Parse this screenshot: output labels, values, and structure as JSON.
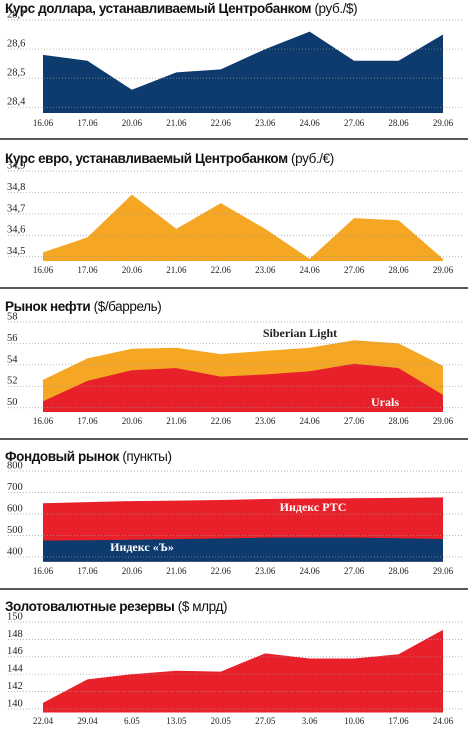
{
  "chart_data": [
    {
      "type": "area",
      "title": "Курс доллара, устанавливаемый Центробанком",
      "unit": "(руб./$)",
      "categories": [
        "16.06",
        "17.06",
        "20.06",
        "21.06",
        "22.06",
        "23.06",
        "24.06",
        "27.06",
        "28.06",
        "29.06"
      ],
      "values": [
        28.58,
        28.56,
        28.46,
        28.52,
        28.53,
        28.6,
        28.66,
        28.56,
        28.56,
        28.65
      ],
      "color": "#0d3b6e",
      "ylim": [
        28.38,
        28.7
      ],
      "yticks": [
        {
          "value": 28.4,
          "label": "28,4"
        },
        {
          "value": 28.5,
          "label": "28,5"
        },
        {
          "value": 28.6,
          "label": "28,6"
        },
        {
          "value": 28.7,
          "label": "28,7"
        }
      ],
      "grid": true
    },
    {
      "type": "area",
      "title": "Курс евро, устанавливаемый Центробанком",
      "unit": "(руб./€)",
      "categories": [
        "16.06",
        "17.06",
        "20.06",
        "21.06",
        "22.06",
        "23.06",
        "24.06",
        "27.06",
        "28.06",
        "29.06"
      ],
      "values": [
        34.52,
        34.59,
        34.79,
        34.63,
        34.75,
        34.63,
        34.49,
        34.68,
        34.67,
        34.49
      ],
      "color": "#f5a623",
      "ylim": [
        34.48,
        34.9
      ],
      "yticks": [
        {
          "value": 34.5,
          "label": "34,5"
        },
        {
          "value": 34.6,
          "label": "34,6"
        },
        {
          "value": 34.7,
          "label": "34,7"
        },
        {
          "value": 34.8,
          "label": "34,8"
        },
        {
          "value": 34.9,
          "label": "34,9"
        }
      ],
      "grid": true
    },
    {
      "type": "area",
      "title": "Рынок нефти",
      "unit": "($/баррель)",
      "categories": [
        "16.06",
        "17.06",
        "20.06",
        "21.06",
        "22.06",
        "23.06",
        "24.06",
        "27.06",
        "28.06",
        "29.06"
      ],
      "series": [
        {
          "name": "Siberian Light",
          "color": "#f5a623",
          "values": [
            52.6,
            54.6,
            55.5,
            55.6,
            55.0,
            55.3,
            55.6,
            56.3,
            56.0,
            53.9
          ]
        },
        {
          "name": "Urals",
          "color": "#e8202a",
          "values": [
            50.6,
            52.5,
            53.5,
            53.7,
            52.9,
            53.1,
            53.4,
            54.1,
            53.7,
            51.2
          ]
        }
      ],
      "ylim": [
        49.6,
        58
      ],
      "yticks": [
        50,
        52,
        54,
        56,
        58
      ],
      "grid": true
    },
    {
      "type": "area",
      "title": "Фондовый рынок",
      "unit": "(пункты)",
      "categories": [
        "16.06",
        "17.06",
        "20.06",
        "21.06",
        "22.06",
        "23.06",
        "24.06",
        "27.06",
        "28.06",
        "29.06"
      ],
      "series": [
        {
          "name": "Индекс РТС",
          "color": "#e8202a",
          "values": [
            650,
            655,
            660,
            662,
            665,
            670,
            672,
            673,
            675,
            677
          ]
        },
        {
          "name": "Индекс «Ъ»",
          "color": "#0d3b6e",
          "values": [
            476,
            478,
            480,
            483,
            486,
            490,
            490,
            490,
            487,
            483
          ]
        }
      ],
      "ylim": [
        378,
        800
      ],
      "yticks": [
        400,
        500,
        600,
        700,
        800
      ],
      "grid": true
    },
    {
      "type": "area",
      "title": "Золотовалютные резервы",
      "unit": "($ млрд)",
      "categories": [
        "22.04",
        "29.04",
        "6.05",
        "13.05",
        "20.05",
        "27.05",
        "3.06",
        "10.06",
        "17.06",
        "24.06"
      ],
      "values": [
        140.7,
        143.4,
        144.0,
        144.4,
        144.3,
        146.4,
        145.8,
        145.8,
        146.3,
        149.1
      ],
      "color": "#e8202a",
      "ylim": [
        139.6,
        150
      ],
      "yticks": [
        140,
        142,
        144,
        146,
        148,
        150
      ],
      "grid": true
    }
  ]
}
